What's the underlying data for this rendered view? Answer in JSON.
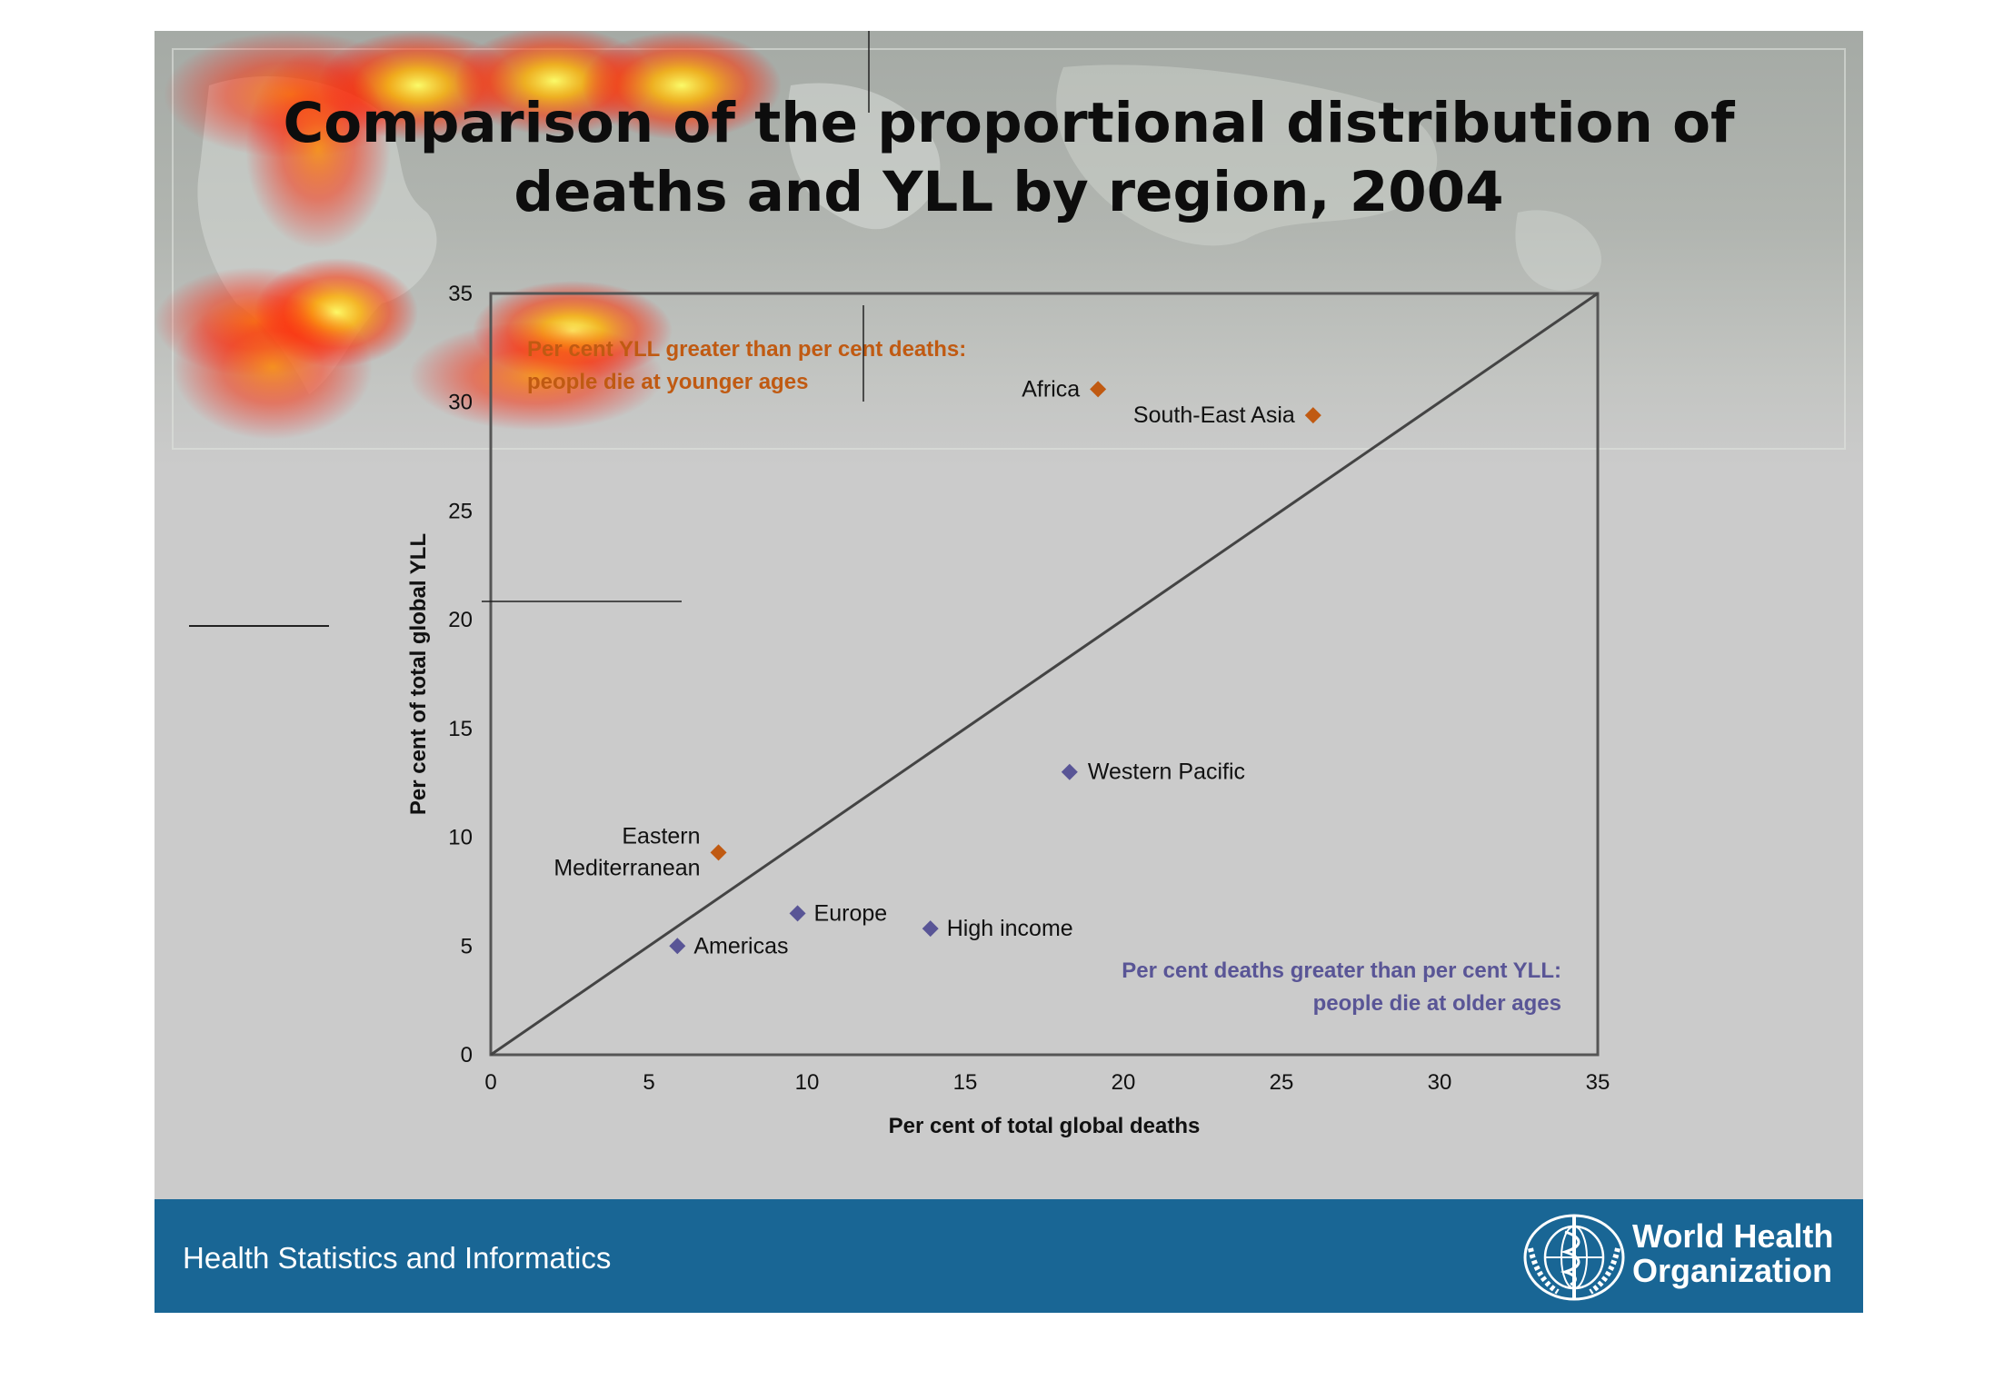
{
  "slide": {
    "title_line1": "Comparison of the proportional distribution of",
    "title_line2": "deaths and YLL by region, 2004",
    "footer_text": "Health Statistics and Informatics",
    "org_name_line1": "World Health",
    "org_name_line2": "Organization",
    "colors": {
      "footer": "#196695",
      "background": "#cbcbcb",
      "orange": "#c05a12",
      "purple": "#595596"
    }
  },
  "chart_data": {
    "type": "scatter",
    "xlabel": "Per cent of total global deaths",
    "ylabel": "Per cent of total global YLL",
    "xlim": [
      0,
      35
    ],
    "ylim": [
      0,
      35
    ],
    "x_ticks": [
      "0",
      "5",
      "10",
      "15",
      "20",
      "25",
      "30",
      "35"
    ],
    "y_ticks": [
      "0",
      "5",
      "10",
      "15",
      "20",
      "25",
      "30",
      "35"
    ],
    "reference_line": {
      "from": [
        0,
        0
      ],
      "to": [
        35,
        35
      ]
    },
    "annotations": [
      {
        "line1": "Per cent YLL greater than per cent deaths:",
        "line2": "people die at younger ages",
        "color": "#c05a12"
      },
      {
        "line1": "Per cent deaths greater than per cent YLL:",
        "line2": "people die at older ages",
        "color": "#595596"
      }
    ],
    "points": [
      {
        "label": "Africa",
        "x": 19.2,
        "y": 30.6,
        "color": "#c05a12"
      },
      {
        "label": "South-East Asia",
        "x": 26.0,
        "y": 29.4,
        "color": "#c05a12"
      },
      {
        "label": "Western Pacific",
        "x": 18.3,
        "y": 13.0,
        "color": "#595596"
      },
      {
        "label_line1": "Eastern",
        "label_line2": "Mediterranean",
        "x": 7.2,
        "y": 9.3,
        "color": "#c05a12"
      },
      {
        "label": "Europe",
        "x": 9.7,
        "y": 6.5,
        "color": "#595596"
      },
      {
        "label": "High income",
        "x": 13.9,
        "y": 5.8,
        "color": "#595596"
      },
      {
        "label": "Americas",
        "x": 5.9,
        "y": 5.0,
        "color": "#595596"
      }
    ]
  }
}
